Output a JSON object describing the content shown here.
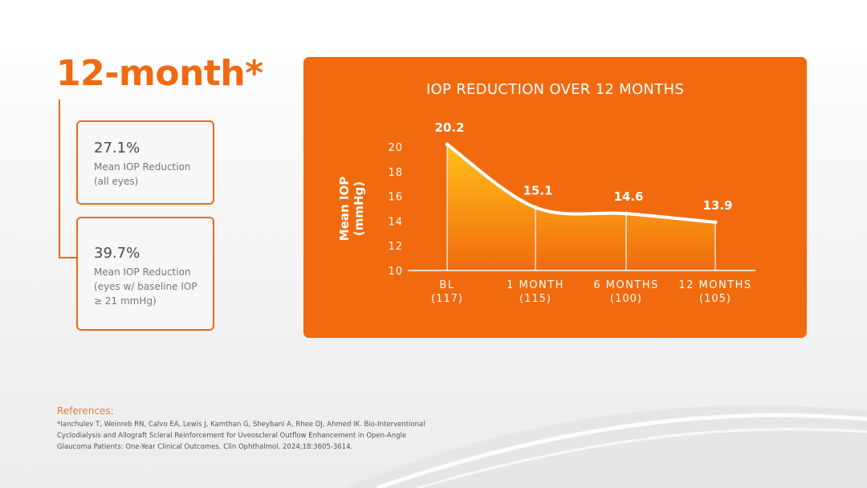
{
  "heading": "12-month*",
  "stats": [
    {
      "value": "27.1%",
      "desc_lines": [
        "Mean IOP Reduction",
        "(all eyes)"
      ]
    },
    {
      "value": "39.7%",
      "desc_lines": [
        "Mean IOP Reduction",
        "(eyes w/ baseline IOP",
        "≥ 21 mmHg)"
      ]
    }
  ],
  "chart_data": {
    "type": "area",
    "title": "IOP REDUCTION OVER 12 MONTHS",
    "ylabel_lines": [
      "Mean IOP",
      "(mmHg)"
    ],
    "xlabel": "",
    "categories": [
      "BL",
      "1 MONTH",
      "6 MONTHS",
      "12 MONTHS"
    ],
    "category_counts": [
      "(117)",
      "(115)",
      "(100)",
      "(105)"
    ],
    "values": [
      20.2,
      15.1,
      14.6,
      13.9
    ],
    "value_labels": [
      "20.2",
      "15.1",
      "14.6",
      "13.9"
    ],
    "ylim": [
      10,
      20
    ],
    "yticks": [
      10,
      12,
      14,
      16,
      18,
      20
    ],
    "grid": false,
    "legend": "none"
  },
  "references": {
    "title": "References:",
    "lines": [
      "*Ianchulev T, Weinreb RN, Calvo EA, Lewis J, Kamthan G, Sheybani A, Rhee DJ, Ahmed IK. Bio-Interventional",
      "Cyclodialysis and Allograft Scleral Reinforcement for Uveoscleral Outflow Enhancement in Open-Angle",
      "Glaucoma Patients: One-Year Clinical Outcomes. Clin Ophthalmol. 2024;18:3605-3614."
    ]
  },
  "colors": {
    "accent": "#f26a0e",
    "heading": "#f06a10",
    "area_top": "#ffc21a",
    "area_bottom": "#f26a0e"
  }
}
